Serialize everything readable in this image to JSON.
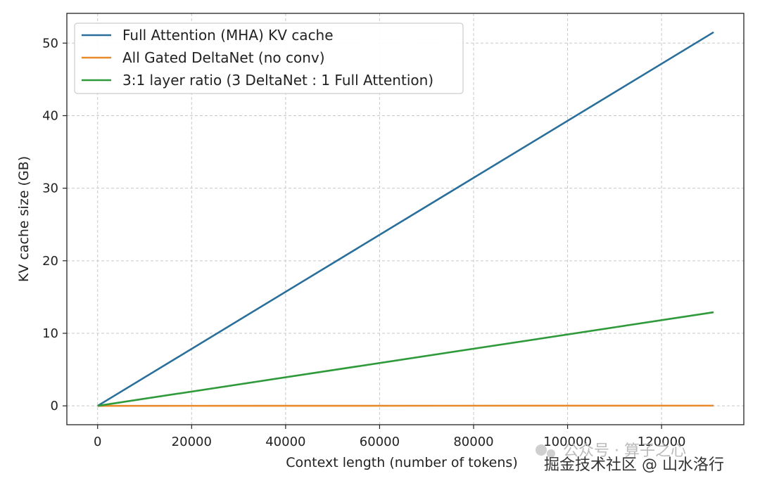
{
  "chart_data": {
    "type": "line",
    "title": "",
    "xlabel": "Context length (number of tokens)",
    "ylabel": "KV cache size (GB)",
    "xlim": [
      -6550,
      137500
    ],
    "ylim": [
      -2.6,
      54.1
    ],
    "xticks": [
      0,
      20000,
      40000,
      60000,
      80000,
      100000,
      120000
    ],
    "yticks": [
      0,
      10,
      20,
      30,
      40,
      50
    ],
    "grid": true,
    "legend_position": "top-left",
    "series": [
      {
        "name": "Full Attention (MHA) KV cache",
        "color": "#2a6f9b",
        "x": [
          0,
          131072
        ],
        "y": [
          0,
          51.5
        ]
      },
      {
        "name": "All Gated DeltaNet (no conv)",
        "color": "#e8892a",
        "x": [
          0,
          131072
        ],
        "y": [
          0,
          0.03
        ]
      },
      {
        "name": "3:1 layer ratio (3 DeltaNet : 1 Full Attention)",
        "color": "#2e9a3a",
        "x": [
          0,
          131072
        ],
        "y": [
          0,
          12.9
        ]
      }
    ]
  },
  "watermark": {
    "faint_text": "公众号 · 算子之心",
    "text": "掘金技术社区 @ 山水洛行"
  }
}
